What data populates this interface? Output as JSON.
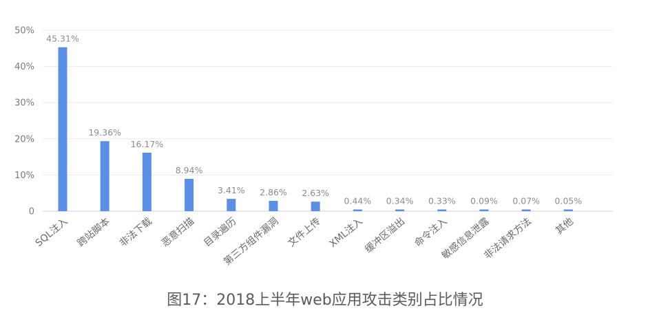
{
  "caption": "图17：2018上半年web应用攻击类别占比情况",
  "chart_data": {
    "type": "bar",
    "categories": [
      "SQL注入",
      "跨站脚本",
      "非法下载",
      "恶意扫描",
      "目录遍历",
      "第三方组件漏洞",
      "文件上传",
      "XML注入",
      "缓冲区溢出",
      "命令注入",
      "敏感信息泄露",
      "非法请求方法",
      "其他"
    ],
    "values": [
      45.31,
      19.36,
      16.17,
      8.94,
      3.41,
      2.86,
      2.63,
      0.44,
      0.34,
      0.33,
      0.09,
      0.07,
      0.05
    ],
    "value_labels": [
      "45.31%",
      "19.36%",
      "16.17%",
      "8.94%",
      "3.41%",
      "2.86%",
      "2.63%",
      "0.44%",
      "0.34%",
      "0.33%",
      "0.09%",
      "0.07%",
      "0.05%"
    ],
    "yticks": [
      0,
      10,
      20,
      30,
      40,
      50
    ],
    "ytick_labels": [
      "0",
      "10%",
      "20%",
      "30%",
      "40%",
      "50%"
    ],
    "ylim": [
      0,
      50
    ],
    "grid": true,
    "bar_color": "#5b8fe3",
    "title": "",
    "xlabel": "",
    "ylabel": ""
  }
}
